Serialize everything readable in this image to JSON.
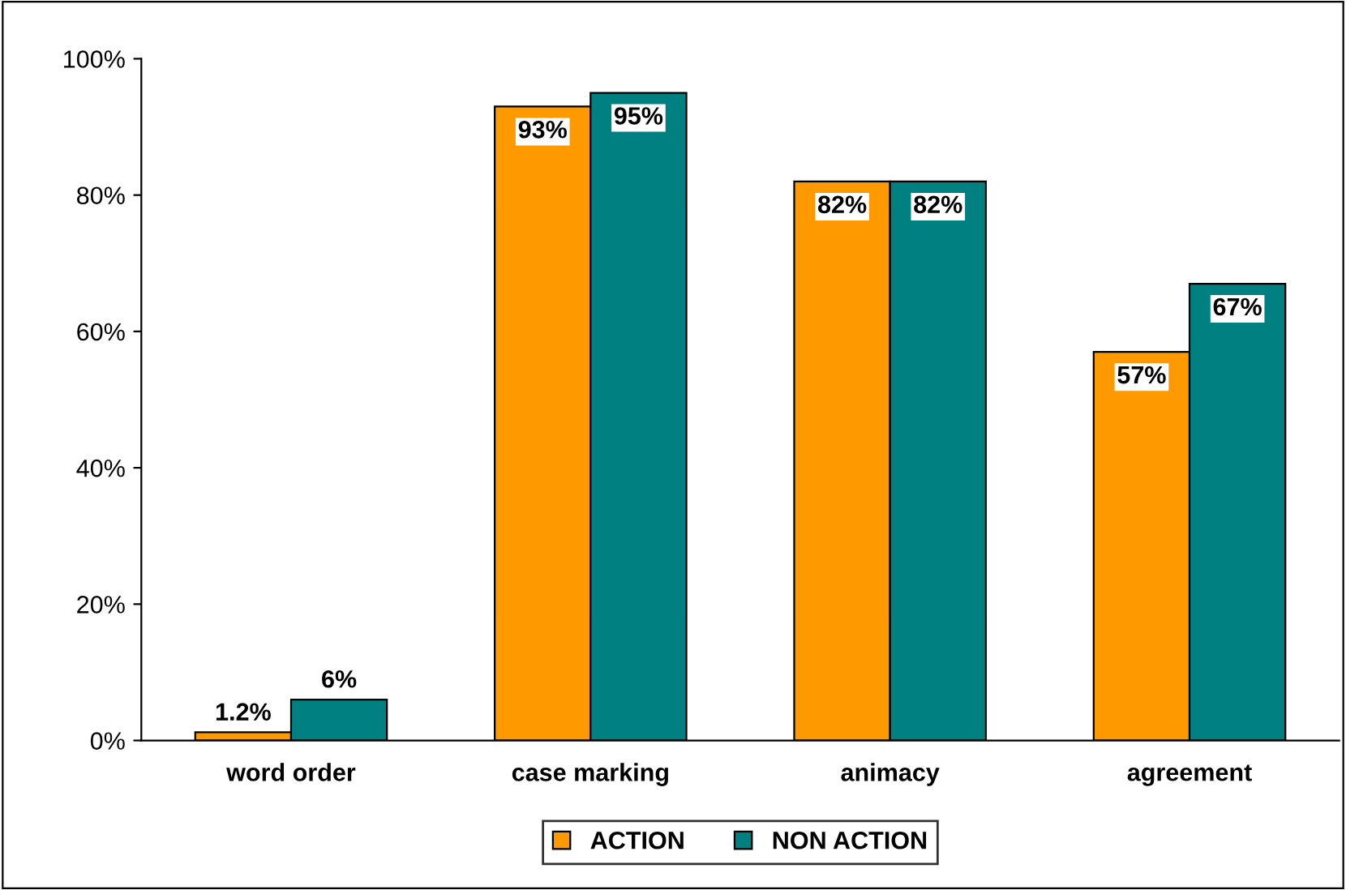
{
  "chart_data": {
    "type": "bar",
    "categories": [
      "word order",
      "case marking",
      "animacy",
      "agreement"
    ],
    "series": [
      {
        "name": "ACTION",
        "color": "#ff9900",
        "values": [
          1.2,
          93,
          82,
          57
        ],
        "value_labels": [
          "1.2%",
          "93%",
          "82%",
          "57%"
        ]
      },
      {
        "name": "NON ACTION",
        "color": "#008080",
        "values": [
          6,
          95,
          82,
          67
        ],
        "value_labels": [
          "6%",
          "95%",
          "82%",
          "67%"
        ]
      }
    ],
    "ylim": [
      0,
      100
    ],
    "yticks": [
      {
        "value": 0,
        "label": "0%"
      },
      {
        "value": 20,
        "label": "20%"
      },
      {
        "value": 40,
        "label": "40%"
      },
      {
        "value": 60,
        "label": "60%"
      },
      {
        "value": 80,
        "label": "80%"
      },
      {
        "value": 100,
        "label": "100%"
      }
    ],
    "legend": "bottom",
    "grid": false
  }
}
